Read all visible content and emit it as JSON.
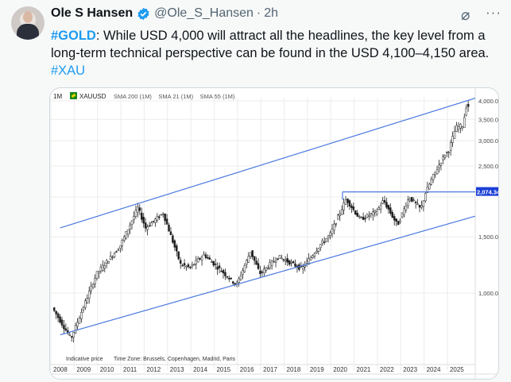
{
  "tweet": {
    "author_name": "Ole S Hansen",
    "handle": "@Ole_S_Hansen",
    "separator": "·",
    "time": "2h",
    "text_tag1": "#GOLD",
    "text_body": ": While USD 4,000 will attract all the headlines, the key level from a long-term technical perspective can be found in the USD 4,100–4,150 area.",
    "text_tag2": "#XAU",
    "icons": {
      "verified": "verified-badge-icon",
      "grok": "grok-icon",
      "more": "more-icon"
    },
    "more_glyph": "···",
    "grok_glyph": "⌀"
  },
  "colors": {
    "accent": "#1d9bf0",
    "channel": "#4a78e0",
    "label_bg": "#1a3fd6",
    "candle": "#222222"
  },
  "chart_data": {
    "type": "candlestick",
    "timeframe": "1M",
    "symbol": "XAUUSD",
    "indicators": [
      "SMA 200 (1M)",
      "SMA 21 (1M)",
      "SMA 55 (1M)"
    ],
    "y_scale": "log",
    "y_ticks": [
      "4,000.00",
      "3,500.00",
      "3,000.00",
      "2,500.00",
      "1,500.00",
      "1,000.00"
    ],
    "y_tick_values": [
      4000,
      3500,
      3000,
      2500,
      1500,
      1000
    ],
    "highlight_level": {
      "value": 2074.34,
      "label": "2,074.34"
    },
    "x_ticks": [
      "2008",
      "2009",
      "2010",
      "2011",
      "2012",
      "2013",
      "2014",
      "2015",
      "2016",
      "2017",
      "2018",
      "2019",
      "2020",
      "2021",
      "2022",
      "2023",
      "2024",
      "2025"
    ],
    "footer_note": "Indicative price",
    "timezone_note": "Time Zone: Brussels, Copenhagen, Madrid, Paris",
    "price_path": [
      [
        2008.0,
        900
      ],
      [
        2008.8,
        720
      ],
      [
        2009.9,
        1150
      ],
      [
        2010.9,
        1400
      ],
      [
        2011.67,
        1850
      ],
      [
        2012.0,
        1600
      ],
      [
        2012.75,
        1780
      ],
      [
        2013.5,
        1230
      ],
      [
        2013.9,
        1200
      ],
      [
        2014.5,
        1320
      ],
      [
        2015.9,
        1060
      ],
      [
        2016.5,
        1350
      ],
      [
        2016.9,
        1150
      ],
      [
        2017.7,
        1300
      ],
      [
        2018.7,
        1190
      ],
      [
        2019.5,
        1420
      ],
      [
        2019.9,
        1520
      ],
      [
        2020.6,
        1970
      ],
      [
        2021.2,
        1700
      ],
      [
        2021.9,
        1800
      ],
      [
        2022.2,
        1950
      ],
      [
        2022.8,
        1630
      ],
      [
        2023.3,
        2000
      ],
      [
        2023.8,
        1830
      ],
      [
        2024.0,
        2060
      ],
      [
        2024.3,
        2300
      ],
      [
        2024.8,
        2700
      ],
      [
        2025.0,
        2800
      ],
      [
        2025.3,
        3300
      ],
      [
        2025.6,
        3350
      ],
      [
        2025.75,
        3850
      ]
    ],
    "trend_channel": {
      "upper": [
        [
          2008.3,
          1600
        ],
        [
          2026.0,
          4100
        ]
      ],
      "lower": [
        [
          2008.3,
          740
        ],
        [
          2026.0,
          1750
        ]
      ]
    }
  }
}
